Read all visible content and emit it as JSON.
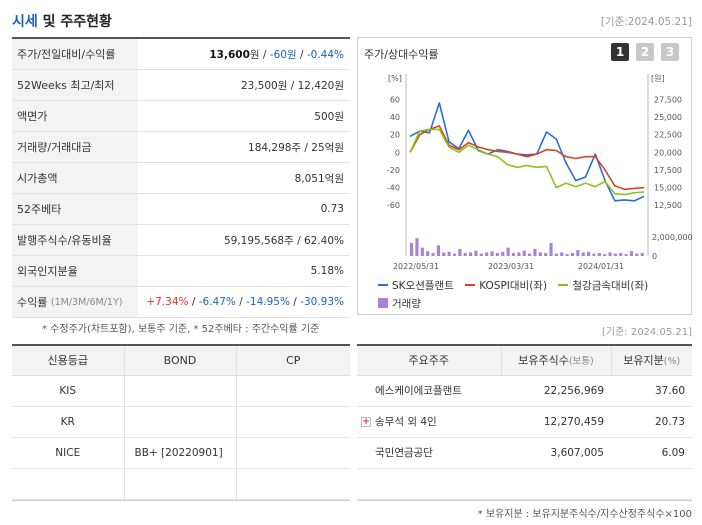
{
  "header": {
    "title_main": "시세",
    "title_rest": " 및 주주현황",
    "date": "[기준:2024.05.21]"
  },
  "market": {
    "price_label": "주가/전일대비/수익률",
    "price": "13,600",
    "price_unit": "원",
    "change": "-60원",
    "change_pct": "-0.44%",
    "week52_label": "52Weeks 최고/최저",
    "week52": "23,500원 / 12,420원",
    "face_label": "액면가",
    "face": "500원",
    "volume_label": "거래량/거래대금",
    "volume": "184,298주 / 25억원",
    "mcap_label": "시가총액",
    "mcap": "8,051억원",
    "beta_label": "52주베타",
    "beta": "0.73",
    "shares_label": "발행주식수/유동비율",
    "shares": "59,195,568주 / 62.40%",
    "foreign_label": "외국인지분율",
    "foreign": "5.18%",
    "return_label": "수익률",
    "return_sub": "(1M/3M/6M/1Y)",
    "r1m": "+7.34%",
    "r3m": "-6.47%",
    "r6m": "-14.95%",
    "r1y": "-30.93%",
    "sep": "/"
  },
  "note1": "* 수정주가(차트포함), 보통주 기준, * 52주베타 : 주간수익률 기준",
  "chart": {
    "title": "주가/상대수익률",
    "tabs": [
      "1",
      "2",
      "3"
    ],
    "left_unit": "[%]",
    "right_unit": "[원]",
    "legend": {
      "sk": "SK오션플랜트",
      "kospi": "KOSPI대비(좌)",
      "steel": "철강금속대비(좌)",
      "volume": "거래량"
    }
  },
  "chart_data": {
    "type": "line",
    "x_ticks": [
      "2022/05/31",
      "2023/03/31",
      "2024/01/31"
    ],
    "left_axis": {
      "ticks": [
        60,
        40,
        20,
        0,
        -20,
        -40,
        -60
      ],
      "range": [
        -70,
        65
      ]
    },
    "right_axis": {
      "ticks": [
        "27,500",
        "25,000",
        "22,500",
        "20,000",
        "17,500",
        "15,000",
        "12,500"
      ]
    },
    "volume_axis": {
      "ticks": [
        "2,000,000",
        "0"
      ]
    },
    "colors": {
      "sk": "#2a6dd9",
      "kospi": "#d9451f",
      "steel": "#8cc21b",
      "volume": "#a882d6"
    },
    "series": [
      {
        "name": "SK오션플랜트",
        "values": [
          18,
          24,
          22,
          56,
          12,
          4,
          25,
          2,
          -2,
          3,
          1,
          -2,
          -3,
          -2,
          23,
          15,
          -12,
          -32,
          -28,
          -2,
          -32,
          -55,
          -54,
          -55,
          -50
        ]
      },
      {
        "name": "KOSPI대비(좌)",
        "values": [
          0,
          20,
          26,
          30,
          8,
          3,
          11,
          6,
          3,
          1,
          0,
          -2,
          -5,
          -2,
          3,
          2,
          -5,
          -7,
          -5,
          -5,
          -20,
          -38,
          -42,
          -41,
          -40
        ]
      },
      {
        "name": "철강금속대비(좌)",
        "values": [
          0,
          24,
          26,
          26,
          6,
          0,
          8,
          3,
          -2,
          -5,
          -14,
          -17,
          -15,
          -17,
          -16,
          -40,
          -35,
          -39,
          -35,
          -39,
          -33,
          -47,
          -48,
          -46,
          -45
        ]
      }
    ],
    "volume_name": "거래량",
    "volume": [
      22,
      30,
      14,
      8,
      5,
      18,
      6,
      7,
      4,
      12,
      5,
      6,
      9,
      4,
      6,
      8,
      5,
      7,
      14,
      5,
      6,
      9,
      4,
      12,
      6,
      5,
      22,
      4,
      6,
      3,
      5,
      10,
      6,
      7,
      4,
      5,
      3,
      6,
      4,
      5,
      3,
      8,
      4,
      5
    ]
  },
  "date2": "[기준: 2024.05.21]",
  "credit": {
    "headers": [
      "신용등급",
      "BOND",
      "CP"
    ],
    "rows": [
      {
        "agency": "KIS",
        "bond": "",
        "cp": ""
      },
      {
        "agency": "KR",
        "bond": "",
        "cp": ""
      },
      {
        "agency": "NICE",
        "bond": "BB+ [20220901]",
        "cp": ""
      },
      {
        "agency": "",
        "bond": "",
        "cp": ""
      }
    ]
  },
  "holders": {
    "headers": [
      "주요주주",
      "보유주식수",
      "(보통)",
      "보유지분",
      "(%)"
    ],
    "rows": [
      {
        "name": "에스케이에코플랜트",
        "shares": "22,256,969",
        "pct": "37.60"
      },
      {
        "name": "송무석 외 4인",
        "shares": "12,270,459",
        "pct": "20.73"
      },
      {
        "name": "국민연금공단",
        "shares": "3,607,005",
        "pct": "6.09"
      },
      {
        "name": "",
        "shares": "",
        "pct": ""
      }
    ]
  },
  "note2": "* 보유지분 : 보유지분주식수/지수산정주식수×100"
}
